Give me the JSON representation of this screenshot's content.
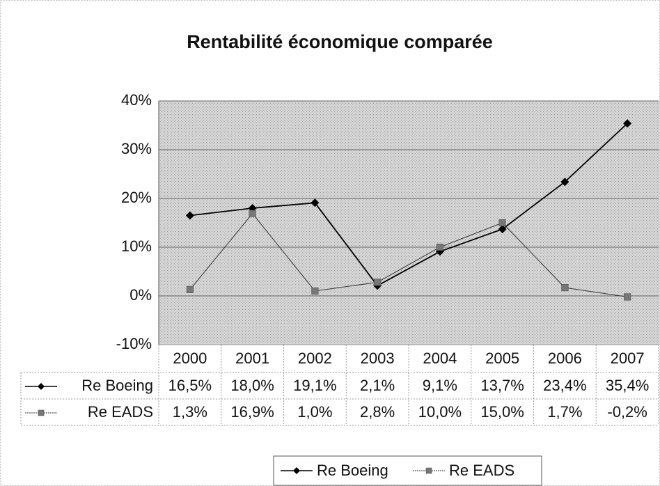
{
  "chart_data": {
    "type": "line",
    "title": "Rentabilité économique comparée",
    "categories": [
      "2000",
      "2001",
      "2002",
      "2003",
      "2004",
      "2005",
      "2006",
      "2007"
    ],
    "series": [
      {
        "name": "Re Boeing",
        "color": "#000000",
        "marker": "diamond",
        "values": [
          16.5,
          18.0,
          19.1,
          2.1,
          9.1,
          13.7,
          23.4,
          35.4
        ],
        "value_labels": [
          "16,5%",
          "18,0%",
          "19,1%",
          "2,1%",
          "9,1%",
          "13,7%",
          "23,4%",
          "35,4%"
        ]
      },
      {
        "name": "Re EADS",
        "color": "#777777",
        "marker": "square",
        "values": [
          1.3,
          16.9,
          1.0,
          2.8,
          10.0,
          15.0,
          1.7,
          -0.2
        ],
        "value_labels": [
          "1,3%",
          "16,9%",
          "1,0%",
          "2,8%",
          "10,0%",
          "15,0%",
          "1,7%",
          "-0,2%"
        ]
      }
    ],
    "ylim": [
      -10,
      40
    ],
    "yticks": [
      {
        "value": -10,
        "label": "-10%"
      },
      {
        "value": 0,
        "label": "0%"
      },
      {
        "value": 10,
        "label": "10%"
      },
      {
        "value": 20,
        "label": "20%"
      },
      {
        "value": 30,
        "label": "30%"
      },
      {
        "value": 40,
        "label": "40%"
      }
    ],
    "grid": true,
    "legend": "bottom",
    "data_table": true
  }
}
